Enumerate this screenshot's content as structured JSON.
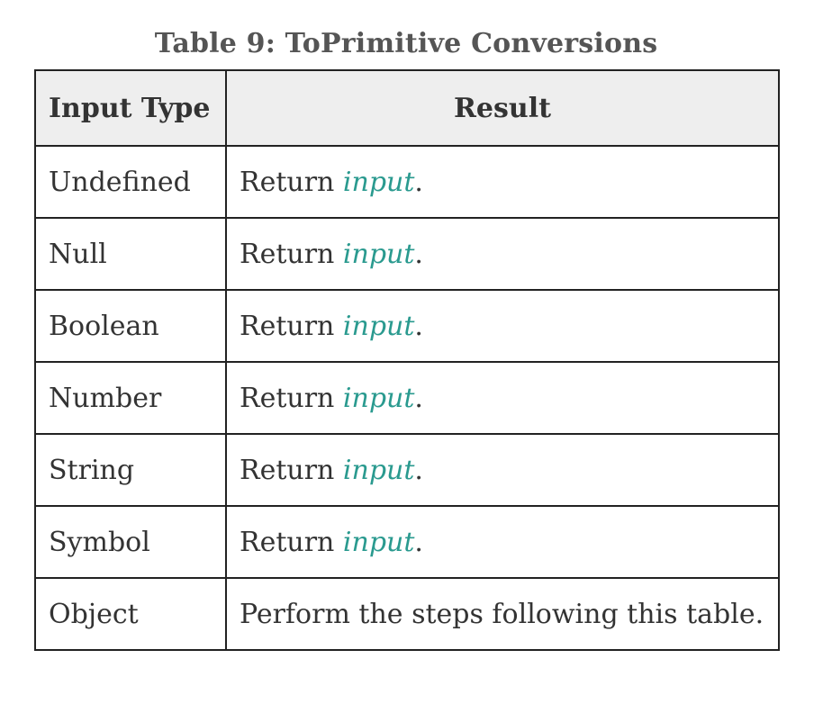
{
  "caption": "Table 9: ToPrimitive Conversions",
  "table": {
    "headers": [
      "Input Type",
      "Result"
    ],
    "rows": [
      {
        "type": "Undefined",
        "result_prefix": "Return ",
        "result_var": "input",
        "result_suffix": "."
      },
      {
        "type": "Null",
        "result_prefix": "Return ",
        "result_var": "input",
        "result_suffix": "."
      },
      {
        "type": "Boolean",
        "result_prefix": "Return ",
        "result_var": "input",
        "result_suffix": "."
      },
      {
        "type": "Number",
        "result_prefix": "Return ",
        "result_var": "input",
        "result_suffix": "."
      },
      {
        "type": "String",
        "result_prefix": "Return ",
        "result_var": "input",
        "result_suffix": "."
      },
      {
        "type": "Symbol",
        "result_prefix": "Return ",
        "result_var": "input",
        "result_suffix": "."
      },
      {
        "type": "Object",
        "result_prefix": "Perform the steps following this table.",
        "result_var": "",
        "result_suffix": ""
      }
    ]
  },
  "colors": {
    "variable": "#2a9a8f",
    "header_bg": "#eeeeee",
    "border": "#222222"
  }
}
